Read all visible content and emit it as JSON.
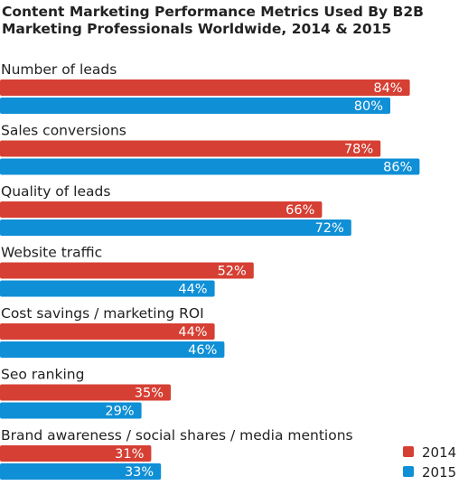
{
  "chart_data": {
    "type": "bar",
    "orientation": "horizontal",
    "title_lines": [
      "Content Marketing Performance Metrics Used By B2B",
      "Marketing Professionals Worldwide, 2014 & 2015"
    ],
    "categories": [
      "Number of leads",
      "Sales conversions",
      "Quality of leads",
      "Website traffic",
      "Cost savings / marketing ROI",
      "Seo ranking",
      "Brand awareness / social shares / media mentions"
    ],
    "series": [
      {
        "name": "2014",
        "color": "#d63f33",
        "values": [
          84,
          78,
          66,
          52,
          44,
          35,
          31
        ],
        "labels": [
          "84%",
          "78%",
          "66%",
          "52%",
          "44%",
          "35%",
          "31%"
        ]
      },
      {
        "name": "2015",
        "color": "#0f8fd6",
        "values": [
          80,
          86,
          72,
          44,
          46,
          29,
          33
        ],
        "labels": [
          "80%",
          "86%",
          "72%",
          "44%",
          "46%",
          "29%",
          "33%"
        ]
      }
    ],
    "value_suffix": "%",
    "xlim": [
      0,
      100
    ],
    "grid": false,
    "legend": {
      "position": "bottom-right",
      "entries": [
        "2014",
        "2015"
      ]
    }
  }
}
